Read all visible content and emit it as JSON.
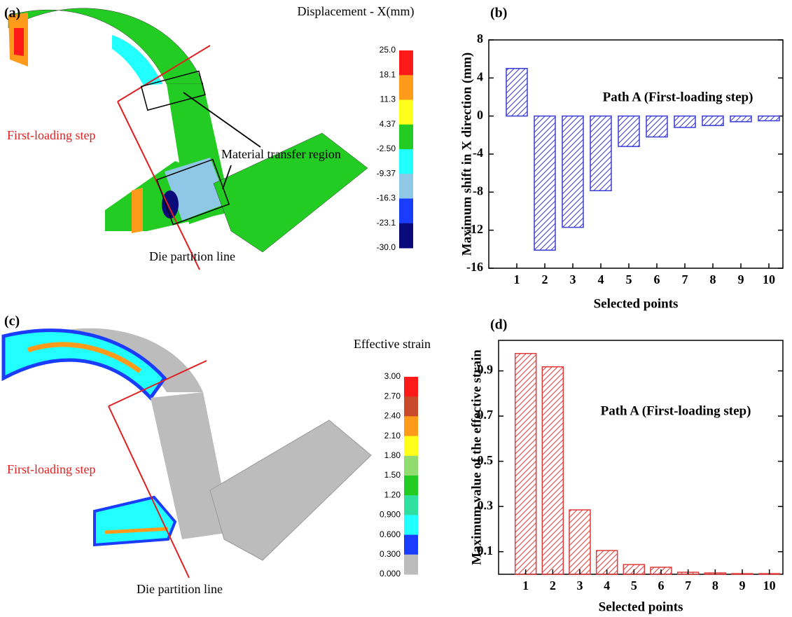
{
  "chart_data": [
    {
      "type": "bar",
      "panel_label": "(b)",
      "annotation": "Path A (First-loading step)",
      "xlabel": "Selected points",
      "ylabel": "Maximum shift in X direction (mm)",
      "categories": [
        "1",
        "2",
        "3",
        "4",
        "5",
        "6",
        "7",
        "8",
        "9",
        "10"
      ],
      "values": [
        5.0,
        -14.1,
        -11.7,
        -7.85,
        -3.2,
        -2.2,
        -1.2,
        -1.0,
        -0.6,
        -0.5
      ],
      "color": "#3b3bd6",
      "hatch": true,
      "ylim": [
        -16,
        8
      ],
      "yticks": [
        -16,
        -12,
        -8,
        -4,
        0,
        4,
        8
      ]
    },
    {
      "type": "bar",
      "panel_label": "(d)",
      "annotation": "Path A (First-loading step)",
      "xlabel": "Selected points",
      "ylabel": "Maximum value of the effective strain",
      "categories": [
        "1",
        "2",
        "3",
        "4",
        "5",
        "6",
        "7",
        "8",
        "9",
        "10"
      ],
      "values": [
        0.977,
        0.918,
        0.285,
        0.105,
        0.043,
        0.031,
        0.009,
        0.006,
        0.003,
        0.003
      ],
      "color": "#e03a3a",
      "hatch": true,
      "ylim": [
        0,
        1.035
      ],
      "yticks": [
        0.1,
        0.3,
        0.5,
        0.7,
        0.9
      ]
    }
  ],
  "simulations": [
    {
      "panel_label": "(a)",
      "legend_title": "Displacement - X(mm)",
      "legend_labels": [
        "25.0",
        "18.1",
        "11.3",
        "4.37",
        "-2.50",
        "-9.37",
        "-16.3",
        "-23.1",
        "-30.0"
      ],
      "legend_colors": [
        "#ff1a1a",
        "#ff9a1a",
        "#ffff1a",
        "#22cc22",
        "#22ffff",
        "#8ec8e6",
        "#1a3cff",
        "#0a0a7a"
      ],
      "annotations": [
        "First-loading step",
        "Material transfer region",
        "Die partition line"
      ]
    },
    {
      "panel_label": "(c)",
      "legend_title": "Effective strain",
      "legend_labels": [
        "3.00",
        "2.70",
        "2.40",
        "2.10",
        "1.80",
        "1.50",
        "1.20",
        "0.900",
        "0.600",
        "0.300",
        "0.000"
      ],
      "legend_colors": [
        "#ff1a1a",
        "#c84a2a",
        "#ff9a1a",
        "#ffff1a",
        "#90dc70",
        "#22cc22",
        "#30e0a0",
        "#22ffff",
        "#1a3cff",
        "#bcbcbc"
      ],
      "annotations": [
        "First-loading step",
        "Die partition line"
      ]
    }
  ]
}
